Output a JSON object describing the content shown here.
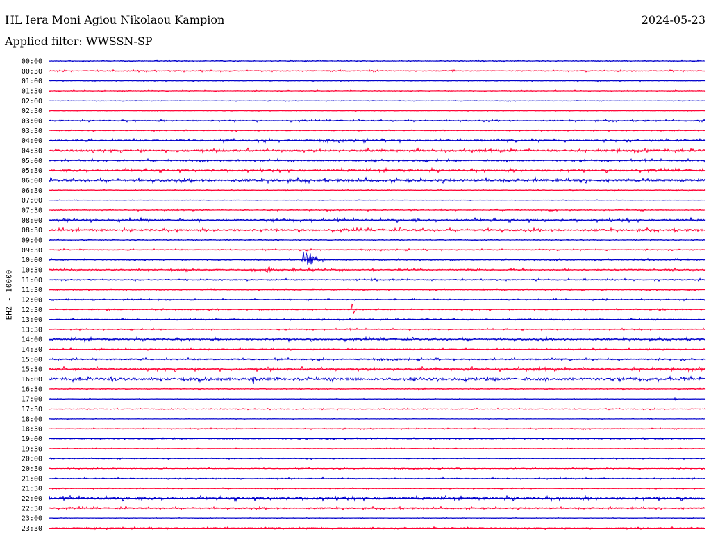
{
  "header": {
    "station": "HL Iera Moni Agiou Nikolaou Kampion",
    "date": "2024-05-23",
    "filter": "Applied filter: WWSSN-SP"
  },
  "chart_data": {
    "type": "line",
    "ylabel": "EHZ - 10000",
    "x_range_minutes": [
      0,
      30
    ],
    "tick_labels": [
      "00:00",
      "00:30",
      "01:00",
      "01:30",
      "02:00",
      "02:30",
      "03:00",
      "03:30",
      "04:00",
      "04:30",
      "05:00",
      "05:30",
      "06:00",
      "06:30",
      "07:00",
      "07:30",
      "08:00",
      "08:30",
      "09:00",
      "09:30",
      "10:00",
      "10:30",
      "11:00",
      "11:30",
      "12:00",
      "12:30",
      "13:00",
      "13:30",
      "14:00",
      "14:30",
      "15:00",
      "15:30",
      "16:00",
      "16:30",
      "17:00",
      "17:30",
      "18:00",
      "18:30",
      "19:00",
      "19:30",
      "20:00",
      "20:30",
      "21:00",
      "21:30",
      "22:00",
      "22:30",
      "23:00",
      "23:30"
    ],
    "trace_colors": [
      "#0000cc",
      "#ff0033"
    ],
    "noise_levels": [
      1,
      1,
      0.6,
      0.8,
      0.5,
      0.5,
      1.2,
      0.8,
      1.8,
      2.2,
      1.5,
      2,
      2.5,
      1,
      0.4,
      1,
      2,
      2,
      1,
      1,
      1.2,
      1.5,
      1.2,
      1,
      1,
      1,
      1,
      1,
      1.8,
      1,
      1.5,
      2.5,
      2.5,
      1,
      0.5,
      0.8,
      0.5,
      0.8,
      1,
      0.6,
      0.8,
      0.8,
      1,
      0.8,
      2.5,
      1.5,
      0.6,
      1.2
    ],
    "events": [
      {
        "row": 20,
        "minute": 11.6,
        "amplitude": 18,
        "duration_min": 1.0
      },
      {
        "row": 21,
        "minute": 9.9,
        "amplitude": 8,
        "duration_min": 0.6
      },
      {
        "row": 25,
        "minute": 13.8,
        "amplitude": 12,
        "duration_min": 0.3
      },
      {
        "row": 25,
        "minute": 27.8,
        "amplitude": 4,
        "duration_min": 0.6
      },
      {
        "row": 32,
        "minute": 9.3,
        "amplitude": 9,
        "duration_min": 0.3
      },
      {
        "row": 32,
        "minute": 2.6,
        "amplitude": 3,
        "duration_min": 1.0
      },
      {
        "row": 34,
        "minute": 28.6,
        "amplitude": 4,
        "duration_min": 0.2
      },
      {
        "row": 36,
        "minute": 27.4,
        "amplitude": 4,
        "duration_min": 0.2
      },
      {
        "row": 0,
        "minute": 0.9,
        "amplitude": 3,
        "duration_min": 0.1
      },
      {
        "row": 1,
        "minute": 14.2,
        "amplitude": 2,
        "duration_min": 0.1
      }
    ]
  }
}
